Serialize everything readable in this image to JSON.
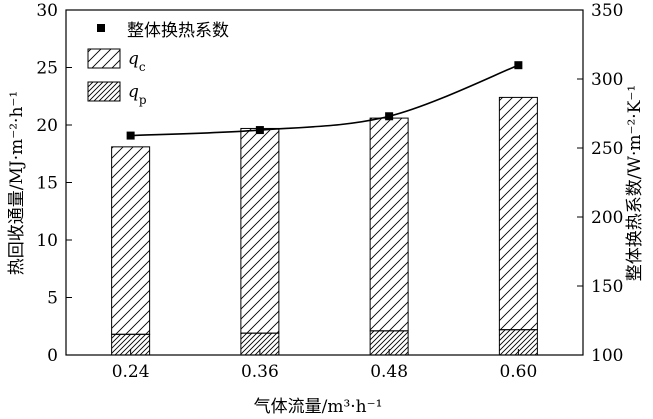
{
  "chart_data": {
    "type": "bar",
    "categories": [
      "0.24",
      "0.36",
      "0.48",
      "0.60"
    ],
    "series": [
      {
        "name": "qp",
        "axis": "left",
        "kind": "bar-stack-bottom",
        "pattern": "dense-hatch",
        "values": [
          1.8,
          1.9,
          2.1,
          2.2
        ]
      },
      {
        "name": "qc",
        "axis": "left",
        "kind": "bar-stack-top",
        "pattern": "hatch",
        "values": [
          16.3,
          17.8,
          18.5,
          20.2
        ]
      },
      {
        "name": "整体换热系数",
        "axis": "right",
        "kind": "line-marker",
        "marker": "square",
        "values": [
          259,
          263,
          273,
          310
        ]
      }
    ],
    "xlabel": "气体流量/m³·h⁻¹",
    "ylabel_left": "热回收通量/MJ·m⁻²·h⁻¹",
    "ylabel_right": "整体换热系数/W·m⁻²·K⁻¹",
    "ylim_left": [
      0,
      30
    ],
    "ylim_right": [
      100,
      350
    ],
    "yticks_left": [
      0,
      5,
      10,
      15,
      20,
      25,
      30
    ],
    "yticks_right": [
      100,
      150,
      200,
      250,
      300,
      350
    ],
    "legend_placement": "top-left",
    "grid": false,
    "colors": {
      "line": "#000000",
      "bar_fill": "#ffffff",
      "hatch": "#000000"
    }
  }
}
